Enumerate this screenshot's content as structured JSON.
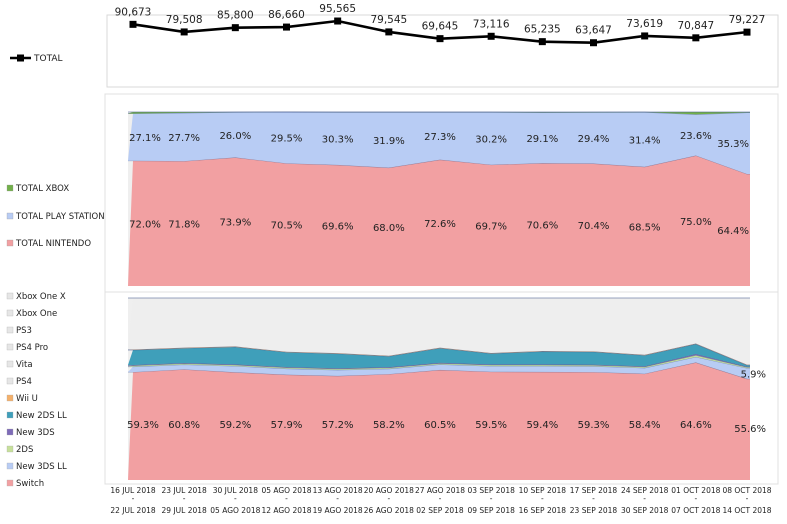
{
  "chart_data": {
    "type": "dashboard",
    "categories_top": [
      "16 JUL 2018",
      "23 JUL 2018",
      "30 JUL 2018",
      "05 AGO 2018",
      "13 AGO 2018",
      "20 AGO 2018",
      "27 AGO 2018",
      "03 SEP 2018",
      "10 SEP 2018",
      "17 SEP 2018",
      "24 SEP 2018",
      "01 OCT 2018",
      "08 OCT 2018"
    ],
    "categories_bottom": [
      "22 JUL 2018",
      "29 JUL 2018",
      "05 AGO 2018",
      "12 AGO 2018",
      "19 AGO 2018",
      "26 AGO 2018",
      "02 SEP 2018",
      "09 SEP 2018",
      "16 SEP 2018",
      "23 SEP 2018",
      "30 SEP 2018",
      "07 OCT 2018",
      "14 OCT 2018"
    ],
    "total_chart": {
      "type": "line",
      "series": [
        {
          "name": "TOTAL",
          "values": [
            90673,
            79508,
            85800,
            86660,
            95565,
            79545,
            69645,
            73116,
            65235,
            63647,
            73619,
            70847,
            79227
          ]
        }
      ],
      "labels": [
        "90,673",
        "79,508",
        "85,800",
        "86,660",
        "95,565",
        "79,545",
        "69,645",
        "73,116",
        "65,235",
        "63,647",
        "73,619",
        "70,847",
        "79,227"
      ],
      "ylim": [
        0,
        100000
      ],
      "color": "#000000"
    },
    "brand_chart": {
      "type": "area",
      "stacked_percent": true,
      "series": [
        {
          "name": "TOTAL NINTENDO",
          "color": "#f2a0a2",
          "values": [
            72.0,
            71.8,
            73.9,
            70.5,
            69.6,
            68.0,
            72.6,
            69.7,
            70.6,
            70.4,
            68.5,
            75.0,
            64.4
          ],
          "labels": [
            "72.0%",
            "71.8%",
            "73.9%",
            "70.5%",
            "69.6%",
            "68.0%",
            "72.6%",
            "69.7%",
            "70.6%",
            "70.4%",
            "68.5%",
            "75.0%",
            "64.4%"
          ]
        },
        {
          "name": "TOTAL PLAY STATION",
          "color": "#b8ccf4",
          "values": [
            27.1,
            27.7,
            26.0,
            29.5,
            30.3,
            31.9,
            27.3,
            30.2,
            29.1,
            29.4,
            31.4,
            23.6,
            35.3
          ],
          "labels": [
            "27.1%",
            "27.7%",
            "26.0%",
            "29.5%",
            "30.3%",
            "31.9%",
            "27.3%",
            "30.2%",
            "29.1%",
            "29.4%",
            "31.4%",
            "23.6%",
            "35.3%"
          ]
        },
        {
          "name": "TOTAL XBOX",
          "color": "#72b04a",
          "values": [
            0.9,
            0.5,
            0.1,
            0.0,
            0.1,
            0.1,
            0.1,
            0.1,
            0.3,
            0.2,
            0.1,
            1.4,
            0.3
          ]
        }
      ],
      "legend": [
        "TOTAL XBOX",
        "TOTAL PLAY STATION",
        "TOTAL NINTENDO"
      ]
    },
    "platform_chart": {
      "type": "area",
      "stacked_percent": true,
      "series": [
        {
          "name": "Switch",
          "color": "#f2a0a2",
          "values": [
            59.3,
            60.8,
            59.2,
            57.9,
            57.2,
            58.2,
            60.5,
            59.5,
            59.4,
            59.3,
            58.4,
            64.6,
            55.6
          ],
          "labels": [
            "59.3%",
            "60.8%",
            "59.2%",
            "57.9%",
            "57.2%",
            "58.2%",
            "60.5%",
            "59.5%",
            "59.4%",
            "59.3%",
            "58.4%",
            "64.6%",
            "55.6%"
          ]
        },
        {
          "name": "New 3DS LL",
          "color": "#b8ccf4",
          "values": [
            3.0,
            2.6,
            3.4,
            3.3,
            3.3,
            2.9,
            3.0,
            3.1,
            3.2,
            3.2,
            3.2,
            3.0,
            5.9
          ],
          "labels": [
            "",
            "",
            "",
            "",
            "",
            "",
            "",
            "",
            "",
            "",
            "",
            "",
            "5.9%"
          ]
        },
        {
          "name": "2DS",
          "color": "#c6e09a",
          "values": [
            0.6,
            0.6,
            0.6,
            0.6,
            0.6,
            0.6,
            0.6,
            0.6,
            0.6,
            0.6,
            0.6,
            1.0,
            0.5
          ]
        },
        {
          "name": "New 3DS",
          "color": "#7e6bb8",
          "values": [
            0.3,
            0.3,
            0.3,
            0.3,
            0.3,
            0.3,
            0.3,
            0.3,
            0.3,
            0.3,
            0.3,
            0.6,
            0.3
          ]
        },
        {
          "name": "New 2DS LL",
          "color": "#3f9fba",
          "values": [
            8.2,
            8.1,
            9.6,
            8.1,
            8.0,
            6.0,
            8.0,
            6.0,
            7.1,
            7.0,
            6.0,
            5.5,
            0.8
          ]
        },
        {
          "name": "Wii U",
          "color": "#f4b06a",
          "values": [
            0.3,
            0.3,
            0.3,
            0.3,
            0.3,
            0.3,
            0.3,
            0.3,
            0.3,
            0.3,
            0.3,
            0.3,
            0.3
          ]
        },
        {
          "name": "PS4",
          "color": "#eeeeee",
          "values": [
            28.3,
            27.3,
            26.6,
            29.5,
            30.3,
            31.7,
            27.3,
            30.2,
            29.1,
            29.3,
            31.2,
            25.0,
            36.6
          ]
        }
      ],
      "legend": [
        "Xbox One X",
        "Xbox One",
        "PS3",
        "PS4 Pro",
        "Vita",
        "PS4",
        "Wii U",
        "New 2DS LL",
        "New 3DS",
        "2DS",
        "New 3DS LL",
        "Switch"
      ],
      "legend_colors": [
        "#e6e6e6",
        "#e6e6e6",
        "#e6e6e6",
        "#e6e6e6",
        "#e6e6e6",
        "#e6e6e6",
        "#f4b06a",
        "#3f9fba",
        "#7e6bb8",
        "#c6e09a",
        "#b8ccf4",
        "#f2a0a2"
      ]
    }
  }
}
